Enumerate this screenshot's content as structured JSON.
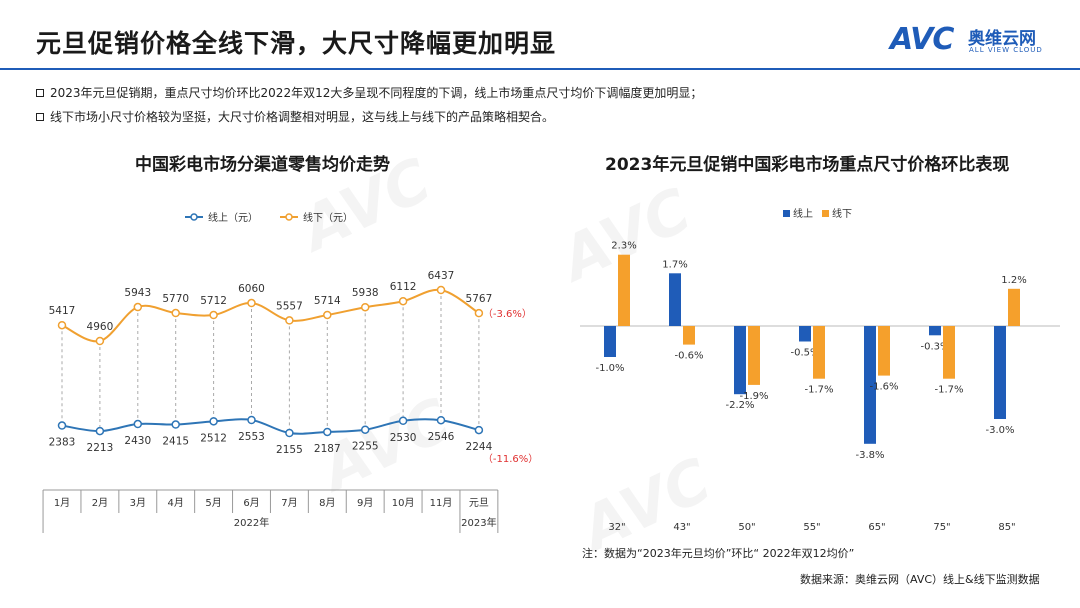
{
  "header": {
    "title": "元旦促销价格全线下滑，大尺寸降幅更加明显",
    "logo_mark": "AVC",
    "logo_cn": "奥维云网",
    "logo_en": "ALL VIEW CLOUD"
  },
  "bullets": [
    "2023年元旦促销期，重点尺寸均价环比2022年双12大多呈现不同程度的下调，线上市场重点尺寸均价下调幅度更加明显；",
    "线下市场小尺寸价格较为坚挺，大尺寸价格调整相对明显，这与线上与线下的产品策略相契合。"
  ],
  "chart_data": [
    {
      "type": "line",
      "title": "中国彩电市场分渠道零售均价走势",
      "categories": [
        "1月",
        "2月",
        "3月",
        "4月",
        "5月",
        "6月",
        "7月",
        "8月",
        "9月",
        "10月",
        "11月",
        "元旦"
      ],
      "group_labels": [
        "2022年",
        "2023年"
      ],
      "series": [
        {
          "name": "线上（元）",
          "color": "#2e75b6",
          "values": [
            2383,
            2213,
            2430,
            2415,
            2512,
            2553,
            2155,
            2187,
            2255,
            2530,
            2546,
            2244
          ],
          "end_change": "（-11.6%）"
        },
        {
          "name": "线下（元）",
          "color": "#f0a030",
          "values": [
            5417,
            4960,
            5943,
            5770,
            5712,
            6060,
            5557,
            5714,
            5938,
            6112,
            6437,
            5767
          ],
          "end_change": "（-3.6%）"
        }
      ],
      "legend": "top"
    },
    {
      "type": "bar",
      "title": "2023年元旦促销中国彩电市场重点尺寸价格环比表现",
      "categories": [
        "32\"",
        "43\"",
        "50\"",
        "55\"",
        "65\"",
        "75\"",
        "85\""
      ],
      "series": [
        {
          "name": "线上",
          "color": "#1f5cb8",
          "values": [
            -1.0,
            1.7,
            -2.2,
            -0.5,
            -3.8,
            -0.3,
            -3.0
          ]
        },
        {
          "name": "线下",
          "color": "#f5a02c",
          "values": [
            2.3,
            -0.6,
            -1.9,
            -1.7,
            -1.6,
            -1.7,
            1.2
          ]
        }
      ],
      "unit": "%",
      "legend": "top"
    }
  ],
  "footer": {
    "note": "注：数据为“2023年元旦均价”环比“ 2022年双12均价”",
    "source": "数据来源：奥维云网（AVC）线上&线下监测数据"
  }
}
